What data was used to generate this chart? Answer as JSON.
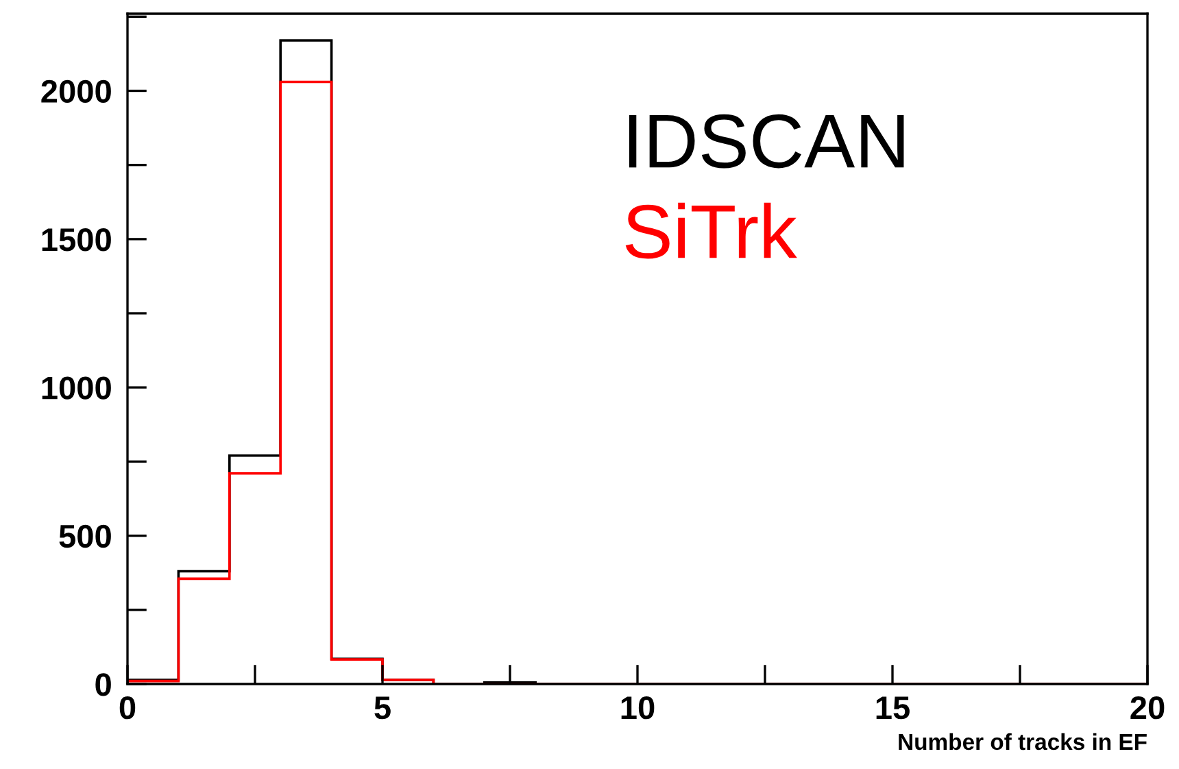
{
  "chart_data": {
    "type": "histogram",
    "xlabel": "Number of tracks in EF",
    "bins": [
      0,
      1,
      2,
      3,
      4,
      5,
      6,
      7,
      8,
      9,
      10,
      11,
      12,
      13,
      14,
      15,
      16,
      17,
      18,
      19,
      20
    ],
    "series": [
      {
        "name": "IDSCAN",
        "color": "#000000",
        "values": [
          14,
          380,
          770,
          2170,
          85,
          14,
          0,
          5,
          0,
          0,
          0,
          0,
          0,
          0,
          0,
          0,
          0,
          0,
          0,
          0
        ]
      },
      {
        "name": "SiTrk",
        "color": "#ff0000",
        "values": [
          10,
          355,
          710,
          2030,
          83,
          14,
          0,
          0,
          0,
          0,
          0,
          0,
          0,
          0,
          0,
          0,
          0,
          0,
          0,
          0
        ]
      }
    ],
    "xlim": [
      0,
      20
    ],
    "ylim": [
      0,
      2260
    ],
    "xticks": [
      0,
      {
        "value": 2.5,
        "label": null
      },
      5,
      {
        "value": 7.5,
        "label": null
      },
      10,
      {
        "value": 12.5,
        "label": null
      },
      15,
      {
        "value": 17.5,
        "label": null
      },
      20
    ],
    "yticks": [
      0,
      {
        "value": 250,
        "label": null
      },
      500,
      {
        "value": 750,
        "label": null
      },
      1000,
      {
        "value": 1250,
        "label": null
      },
      1500,
      {
        "value": 1750,
        "label": null
      },
      2000,
      {
        "value": 2250,
        "label": null
      }
    ],
    "grid": false
  }
}
